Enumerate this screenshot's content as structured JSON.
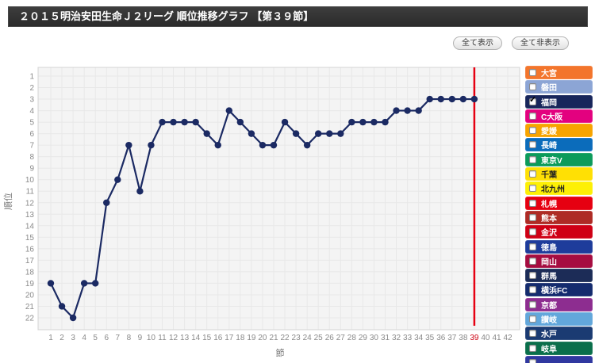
{
  "header": {
    "title": "２０１５明治安田生命Ｊ２リーグ 順位推移グラフ 【第３９節】"
  },
  "toolbar": {
    "show_all_label": "全て表示",
    "hide_all_label": "全て非表示"
  },
  "chart_data": {
    "type": "line",
    "xlabel": "節",
    "ylabel": "順位",
    "x_ticks": [
      1,
      2,
      3,
      4,
      5,
      6,
      7,
      8,
      9,
      10,
      11,
      12,
      13,
      14,
      15,
      16,
      17,
      18,
      19,
      20,
      21,
      22,
      23,
      24,
      25,
      26,
      27,
      28,
      29,
      30,
      31,
      32,
      33,
      34,
      35,
      36,
      37,
      38,
      39,
      40,
      41,
      42
    ],
    "y_ticks": [
      1,
      2,
      3,
      4,
      5,
      6,
      7,
      8,
      9,
      10,
      11,
      12,
      13,
      14,
      15,
      16,
      17,
      18,
      19,
      20,
      21,
      22
    ],
    "x_range": [
      1,
      42
    ],
    "y_range": [
      1,
      22
    ],
    "y_inverted": true,
    "grid": true,
    "current_round": 39,
    "current_round_color": "#e60012",
    "tick_color": "#8a8a8a",
    "axis_title_color": "#777777",
    "plot_bg": "#f4f4f4",
    "grid_color": "#e8e8e8",
    "plot_border": "#d4d4d4",
    "series": [
      {
        "name": "福岡",
        "color": "#1b2a63",
        "x": [
          1,
          2,
          3,
          4,
          5,
          6,
          7,
          8,
          9,
          10,
          11,
          12,
          13,
          14,
          15,
          16,
          17,
          18,
          19,
          20,
          21,
          22,
          23,
          24,
          25,
          26,
          27,
          28,
          29,
          30,
          31,
          32,
          33,
          34,
          35,
          36,
          37,
          38,
          39
        ],
        "values": [
          19,
          21,
          22,
          19,
          19,
          12,
          10,
          7,
          11,
          7,
          5,
          5,
          5,
          5,
          6,
          7,
          4,
          5,
          6,
          7,
          7,
          5,
          6,
          7,
          6,
          6,
          6,
          5,
          5,
          5,
          5,
          4,
          4,
          4,
          3,
          3,
          3,
          3,
          3
        ]
      }
    ]
  },
  "sidebar": {
    "check_glyph": "✓",
    "teams": [
      {
        "label": "大宮",
        "color": "#f3752c",
        "text_color": "#ffffff",
        "checked": false
      },
      {
        "label": "磐田",
        "color": "#8ca5d5",
        "text_color": "#ffffff",
        "checked": false
      },
      {
        "label": "福岡",
        "color": "#18265b",
        "text_color": "#ffffff",
        "checked": true
      },
      {
        "label": "C大阪",
        "color": "#e3017f",
        "text_color": "#ffffff",
        "checked": false
      },
      {
        "label": "愛媛",
        "color": "#f7a400",
        "text_color": "#ffffff",
        "checked": false
      },
      {
        "label": "長崎",
        "color": "#0b6cbb",
        "text_color": "#ffffff",
        "checked": false
      },
      {
        "label": "東京V",
        "color": "#0c9b5b",
        "text_color": "#ffffff",
        "checked": false
      },
      {
        "label": "千葉",
        "color": "#ffe004",
        "text_color": "#222222",
        "checked": false
      },
      {
        "label": "北九州",
        "color": "#fdf005",
        "text_color": "#222222",
        "checked": false
      },
      {
        "label": "札幌",
        "color": "#e60011",
        "text_color": "#ffffff",
        "checked": false
      },
      {
        "label": "熊本",
        "color": "#ae2b25",
        "text_color": "#ffffff",
        "checked": false
      },
      {
        "label": "金沢",
        "color": "#cf0015",
        "text_color": "#ffffff",
        "checked": false
      },
      {
        "label": "徳島",
        "color": "#1e3c9b",
        "text_color": "#ffffff",
        "checked": false
      },
      {
        "label": "岡山",
        "color": "#a60d41",
        "text_color": "#ffffff",
        "checked": false
      },
      {
        "label": "群馬",
        "color": "#1c2c57",
        "text_color": "#ffffff",
        "checked": false
      },
      {
        "label": "横浜FC",
        "color": "#142b6e",
        "text_color": "#ffffff",
        "checked": false
      },
      {
        "label": "京都",
        "color": "#8d2d90",
        "text_color": "#ffffff",
        "checked": false
      },
      {
        "label": "讃岐",
        "color": "#62a7db",
        "text_color": "#ffffff",
        "checked": false
      },
      {
        "label": "水戸",
        "color": "#1b3b72",
        "text_color": "#ffffff",
        "checked": false
      },
      {
        "label": "岐阜",
        "color": "#0a6f4b",
        "text_color": "#ffffff",
        "checked": false
      },
      {
        "label": "",
        "color": "#3038a0",
        "text_color": "#ffffff",
        "checked": false,
        "partial": true
      }
    ]
  }
}
